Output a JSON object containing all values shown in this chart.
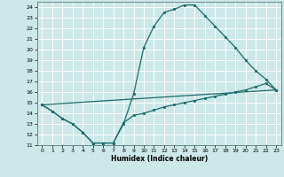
{
  "xlabel": "Humidex (Indice chaleur)",
  "xlim": [
    -0.5,
    23.5
  ],
  "ylim": [
    11,
    24.5
  ],
  "xticks": [
    0,
    1,
    2,
    3,
    4,
    5,
    6,
    7,
    8,
    9,
    10,
    11,
    12,
    13,
    14,
    15,
    16,
    17,
    18,
    19,
    20,
    21,
    22,
    23
  ],
  "yticks": [
    11,
    12,
    13,
    14,
    15,
    16,
    17,
    18,
    19,
    20,
    21,
    22,
    23,
    24
  ],
  "bg_color": "#cce8e8",
  "grid_color": "#ffffff",
  "line_color": "#1a6b6b",
  "line1_x": [
    0,
    1,
    2,
    3,
    4,
    5,
    6,
    7,
    8,
    9,
    10,
    11,
    12,
    13,
    14,
    15,
    16,
    17,
    18,
    19,
    20,
    21,
    22,
    23
  ],
  "line1_y": [
    14.8,
    14.2,
    13.5,
    13.0,
    12.2,
    11.2,
    11.2,
    11.2,
    13.0,
    15.8,
    20.2,
    22.2,
    23.5,
    23.8,
    24.2,
    24.2,
    23.2,
    22.2,
    21.2,
    20.2,
    19.0,
    18.0,
    17.2,
    16.2
  ],
  "line2_x": [
    0,
    1,
    2,
    3,
    4,
    5,
    6,
    7,
    8,
    9,
    10,
    11,
    12,
    13,
    14,
    15,
    16,
    17,
    18,
    19,
    20,
    21,
    22,
    23
  ],
  "line2_y": [
    14.8,
    14.2,
    13.5,
    13.0,
    12.2,
    11.2,
    11.2,
    11.2,
    13.1,
    13.8,
    14.0,
    14.3,
    14.6,
    14.8,
    15.0,
    15.2,
    15.4,
    15.6,
    15.8,
    16.0,
    16.2,
    16.5,
    16.8,
    16.2
  ],
  "line3_x": [
    0,
    23
  ],
  "line3_y": [
    14.8,
    16.2
  ]
}
